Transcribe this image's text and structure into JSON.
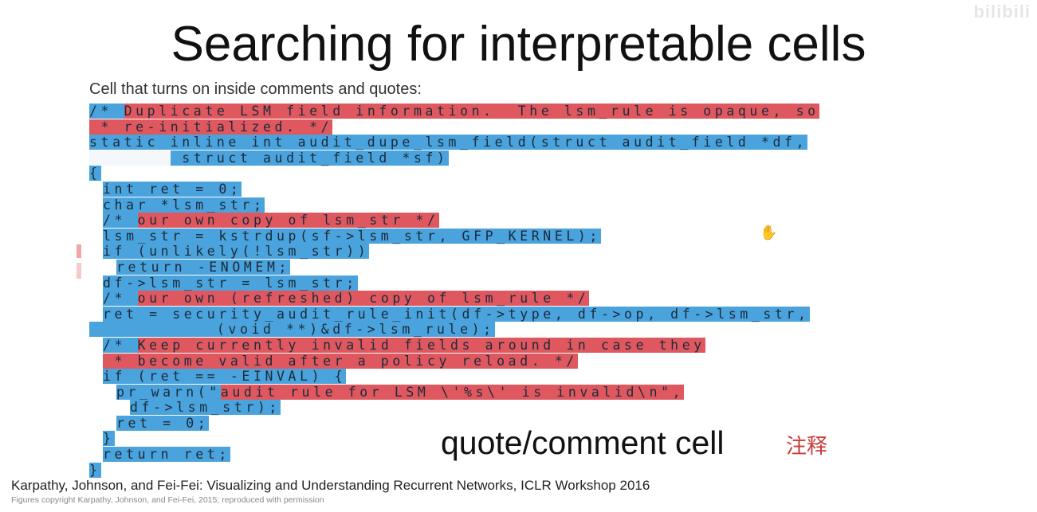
{
  "slide": {
    "title": "Searching for  interpretable cells",
    "subtitle": "Cell that turns on inside comments and quotes:",
    "label": "quote/comment cell",
    "handnote": "注释",
    "watermark": "bilibili",
    "citation": "Karpathy, Johnson, and Fei-Fei: Visualizing and Understanding Recurrent Networks, ICLR Workshop 2016",
    "copyright": "Figures copyright Karpathy, Johnson, and Fei-Fei, 2015; reproduced with permission"
  },
  "colors": {
    "cell_on": "#e0585f",
    "cell_off": "#4aa3dc",
    "neutral": "#f4f8fb"
  },
  "code_lines": [
    {
      "indent": 0,
      "segments": [
        {
          "text": "/* ",
          "c": "b"
        },
        {
          "text": "Duplicate LSM field information.  The lsm_rule is opaque, so",
          "c": "r"
        }
      ]
    },
    {
      "indent": 0,
      "segments": [
        {
          "text": " * re-initialized. */",
          "c": "r"
        }
      ]
    },
    {
      "indent": 0,
      "segments": [
        {
          "text": "static inline int audit_dupe_lsm_field(struct audit_field *df,",
          "c": "b"
        }
      ]
    },
    {
      "indent": 0,
      "segments": [
        {
          "text": "       ",
          "c": "w"
        },
        {
          "text": " struct audit_field *sf)",
          "c": "b"
        }
      ]
    },
    {
      "indent": 0,
      "segments": [
        {
          "text": "{",
          "c": "b"
        }
      ]
    },
    {
      "indent": 1,
      "segments": [
        {
          "text": "int ret = 0;",
          "c": "b"
        }
      ]
    },
    {
      "indent": 1,
      "segments": [
        {
          "text": "char *lsm_str;",
          "c": "b"
        }
      ]
    },
    {
      "indent": 1,
      "segments": [
        {
          "text": "/* ",
          "c": "b"
        },
        {
          "text": "our own copy of lsm_str */",
          "c": "r"
        }
      ]
    },
    {
      "indent": 1,
      "segments": [
        {
          "text": "lsm_str = kstrdup(sf->lsm_str, GFP_KERNEL);",
          "c": "b"
        }
      ]
    },
    {
      "indent": 1,
      "segments": [
        {
          "text": "if (unlikely(!lsm_str))",
          "c": "b"
        }
      ]
    },
    {
      "indent": 2,
      "segments": [
        {
          "text": "return -ENOMEM;",
          "c": "b"
        }
      ]
    },
    {
      "indent": 1,
      "segments": [
        {
          "text": "df->lsm_str = lsm_str;",
          "c": "b"
        }
      ]
    },
    {
      "indent": 1,
      "segments": [
        {
          "text": "/* ",
          "c": "b"
        },
        {
          "text": "our own (refreshed) copy of lsm_rule */",
          "c": "r"
        }
      ]
    },
    {
      "indent": 1,
      "segments": [
        {
          "text": "ret = security_audit_rule_init(df->type, df->op, df->lsm_str,",
          "c": "b"
        }
      ]
    },
    {
      "indent": 0,
      "segments": [
        {
          "text": "           (void **)&df->lsm_rule);",
          "c": "b"
        }
      ]
    },
    {
      "indent": 1,
      "segments": [
        {
          "text": "/* ",
          "c": "b"
        },
        {
          "text": "Keep currently invalid fields around in case they",
          "c": "r"
        }
      ]
    },
    {
      "indent": 1,
      "segments": [
        {
          "text": " * become valid after a policy reload. */",
          "c": "r"
        }
      ]
    },
    {
      "indent": 1,
      "segments": [
        {
          "text": "if (ret == -EINVAL) {",
          "c": "b"
        }
      ]
    },
    {
      "indent": 2,
      "segments": [
        {
          "text": "pr_warn(\"",
          "c": "b"
        },
        {
          "text": "audit rule for LSM \\'%s\\' is invalid\\n\",",
          "c": "r"
        }
      ]
    },
    {
      "indent": 3,
      "segments": [
        {
          "text": "df->lsm_str);",
          "c": "b"
        }
      ]
    },
    {
      "indent": 2,
      "segments": [
        {
          "text": "ret = 0;",
          "c": "b"
        }
      ]
    },
    {
      "indent": 1,
      "segments": [
        {
          "text": "}",
          "c": "b"
        }
      ]
    },
    {
      "indent": 1,
      "segments": [
        {
          "text": "return ret;",
          "c": "b"
        }
      ]
    },
    {
      "indent": 0,
      "segments": [
        {
          "text": "}",
          "c": "b"
        }
      ]
    }
  ]
}
